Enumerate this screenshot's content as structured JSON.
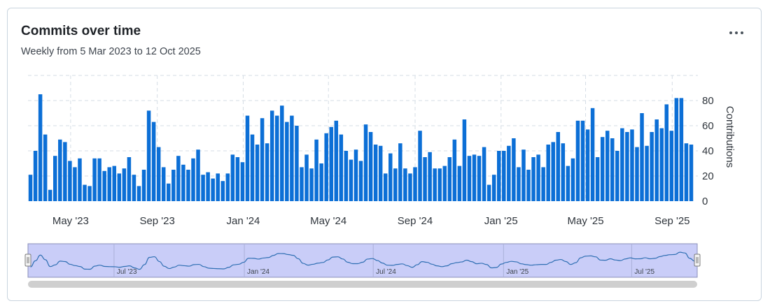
{
  "header": {
    "title": "Commits over time",
    "subtitle": "Weekly from 5 Mar 2023 to 12 Oct 2025",
    "menu_icon": "more-horizontal-icon"
  },
  "colors": {
    "bar": "#0c6fd6",
    "navigator_fill": "#c9cdf8",
    "navigator_line": "#2f6fb3",
    "scrollbar": "#cfcfcf",
    "grid": "#d6dde5"
  },
  "navigator": {
    "labels": [
      "Jul '23",
      "Jan '24",
      "Jul '24",
      "Jan '25",
      "Jul '25"
    ]
  },
  "chart_data": {
    "type": "bar",
    "title": "Commits over time",
    "subtitle": "Weekly from 5 Mar 2023 to 12 Oct 2025",
    "xlabel": "",
    "ylabel": "Contributions",
    "ylim": [
      0,
      100
    ],
    "yticks": [
      0,
      20,
      40,
      60,
      80
    ],
    "xtick_labels": [
      "May '23",
      "Sep '23",
      "Jan '24",
      "May '24",
      "Sep '24",
      "Jan '25",
      "May '25",
      "Sep '25"
    ],
    "grid": true,
    "x_start": "5 Mar 2023",
    "x_end": "12 Oct 2025",
    "x_interval": "week",
    "series": [
      {
        "values": [
          21,
          40,
          85,
          53,
          9,
          36,
          49,
          47,
          32,
          27,
          34,
          13,
          12,
          34,
          34,
          24,
          27,
          28,
          22,
          26,
          35,
          21,
          12,
          25,
          72,
          63,
          43,
          27,
          14,
          25,
          36,
          29,
          25,
          34,
          41,
          21,
          23,
          18,
          22,
          16,
          22,
          37,
          35,
          31,
          68,
          53,
          45,
          66,
          46,
          72,
          68,
          76,
          63,
          68,
          60,
          27,
          37,
          26,
          49,
          30,
          54,
          59,
          64,
          53,
          40,
          33,
          41,
          32,
          61,
          55,
          45,
          44,
          22,
          38,
          26,
          46,
          26,
          22,
          27,
          56,
          35,
          39,
          26,
          26,
          28,
          35,
          49,
          28,
          65,
          36,
          37,
          36,
          43,
          13,
          21,
          40,
          40,
          44,
          50,
          27,
          41,
          25,
          35,
          37,
          27,
          45,
          47,
          55,
          46,
          28,
          34,
          64,
          64,
          57,
          74,
          35,
          51,
          56,
          50,
          40,
          58,
          55,
          57,
          43,
          70,
          44,
          55,
          65,
          58,
          77,
          56,
          82,
          82,
          46,
          45
        ]
      }
    ]
  }
}
